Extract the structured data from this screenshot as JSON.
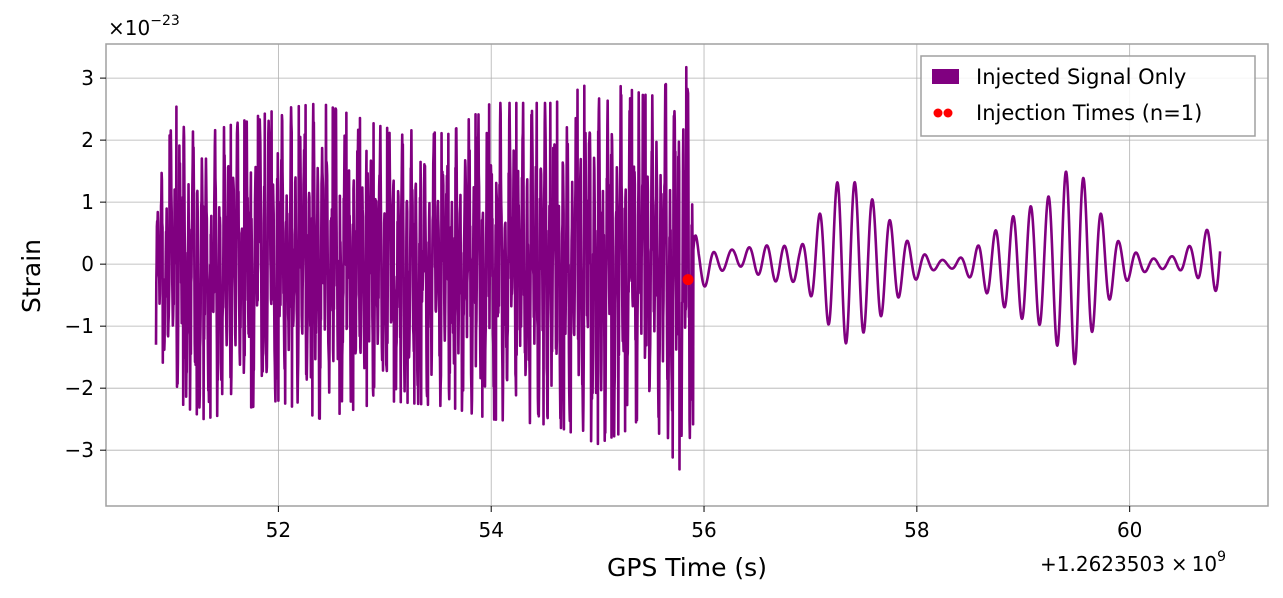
{
  "chart_data": {
    "type": "line",
    "title": "",
    "xlabel": "GPS Time (s)",
    "ylabel": "Strain",
    "x_offset_label": "+1.2623503",
    "x_offset_exp": "9",
    "y_scale_label": "×10",
    "y_scale_exp": "−23",
    "xlim": [
      50.38,
      61.3
    ],
    "ylim": [
      -3.9,
      3.55
    ],
    "x_ticks": [
      52,
      54,
      56,
      58,
      60
    ],
    "x_tick_labels": [
      "52",
      "54",
      "56",
      "58",
      "60"
    ],
    "y_ticks": [
      -3,
      -2,
      -1,
      0,
      1,
      2,
      3
    ],
    "y_tick_labels": [
      "−3",
      "−2",
      "−1",
      "0",
      "1",
      "2",
      "3"
    ],
    "grid": true,
    "legend_position": "top-right",
    "series": [
      {
        "name": "Injected Signal Only",
        "color": "#800080",
        "x_range": [
          50.85,
          60.85
        ],
        "envelope": [
          {
            "x": 50.85,
            "max": 1.15,
            "min": -1.3
          },
          {
            "x": 51.05,
            "max": 2.6,
            "min": -2.2
          },
          {
            "x": 51.3,
            "max": 2.1,
            "min": -2.5
          },
          {
            "x": 52.0,
            "max": 2.5,
            "min": -2.2
          },
          {
            "x": 52.4,
            "max": 2.6,
            "min": -2.5
          },
          {
            "x": 53.0,
            "max": 2.2,
            "min": -2.2
          },
          {
            "x": 53.6,
            "max": 2.1,
            "min": -2.3
          },
          {
            "x": 54.0,
            "max": 2.6,
            "min": -2.5
          },
          {
            "x": 54.6,
            "max": 2.6,
            "min": -2.6
          },
          {
            "x": 55.0,
            "max": 3.0,
            "min": -2.9
          },
          {
            "x": 55.5,
            "max": 2.7,
            "min": -2.5
          },
          {
            "x": 55.85,
            "max": 3.2,
            "min": -3.55
          },
          {
            "x": 55.95,
            "max": 1.3,
            "min": -1.5
          },
          {
            "x": 56.3,
            "max": 1.45,
            "min": -1.2
          },
          {
            "x": 56.7,
            "max": 0.6,
            "min": -0.6
          },
          {
            "x": 56.9,
            "max": 0.35,
            "min": -0.35
          },
          {
            "x": 57.3,
            "max": 1.45,
            "min": -1.3
          },
          {
            "x": 57.8,
            "max": 1.2,
            "min": -1.2
          },
          {
            "x": 58.3,
            "max": 0.6,
            "min": -0.6
          },
          {
            "x": 58.6,
            "max": 1.15,
            "min": -1.2
          },
          {
            "x": 59.2,
            "max": 1.0,
            "min": -1.0
          },
          {
            "x": 59.5,
            "max": 1.8,
            "min": -1.8
          },
          {
            "x": 59.9,
            "max": 0.9,
            "min": -0.9
          },
          {
            "x": 60.3,
            "max": 0.8,
            "min": -0.8
          },
          {
            "x": 60.85,
            "max": 1.2,
            "min": -0.9
          }
        ]
      },
      {
        "name": "Injection Times (n=1)",
        "type": "scatter",
        "color": "#ff0000",
        "points": [
          {
            "x": 55.85,
            "y": -0.25
          }
        ]
      }
    ]
  }
}
